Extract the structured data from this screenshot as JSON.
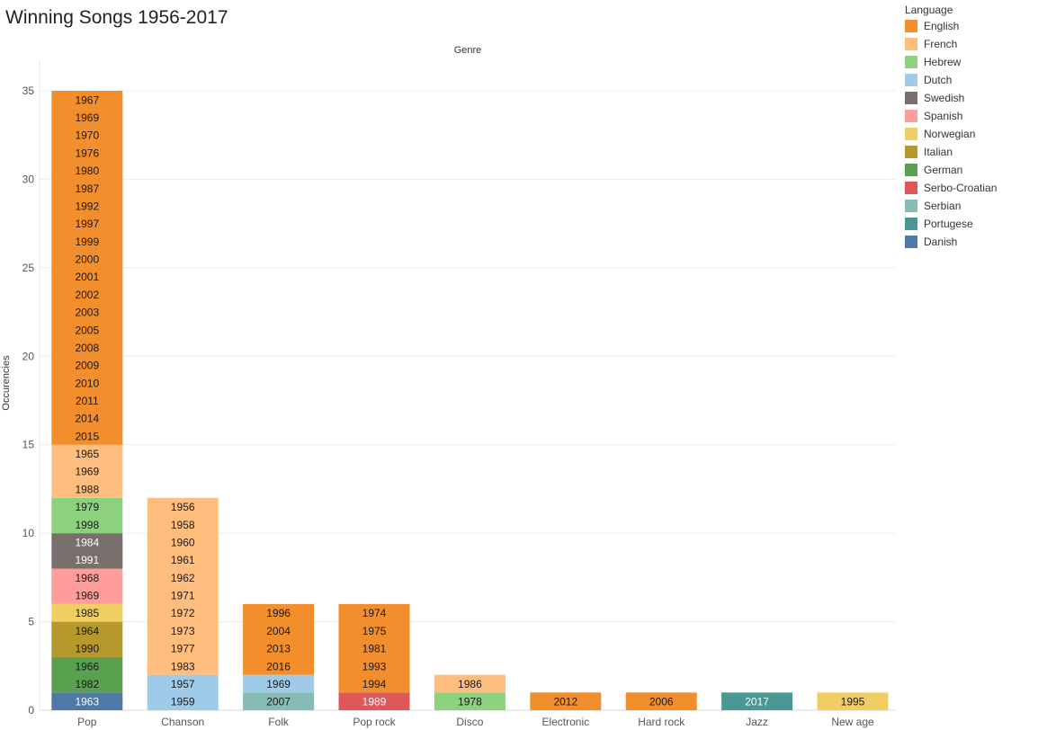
{
  "page": {
    "title": "Winning Songs 1956-2017"
  },
  "legend": {
    "title": "Language",
    "items": [
      {
        "label": "English",
        "color": "#F28E2B"
      },
      {
        "label": "French",
        "color": "#FFBE7D"
      },
      {
        "label": "Hebrew",
        "color": "#8CD17D"
      },
      {
        "label": "Dutch",
        "color": "#A0CBE8"
      },
      {
        "label": "Swedish",
        "color": "#79706E"
      },
      {
        "label": "Spanish",
        "color": "#FF9D9A"
      },
      {
        "label": "Norwegian",
        "color": "#F1CE63"
      },
      {
        "label": "Italian",
        "color": "#B6992D"
      },
      {
        "label": "German",
        "color": "#59A14F"
      },
      {
        "label": "Serbo-Croatian",
        "color": "#E15759"
      },
      {
        "label": "Serbian",
        "color": "#86BCB6"
      },
      {
        "label": "Portugese",
        "color": "#499894"
      },
      {
        "label": "Danish",
        "color": "#4E79A7"
      }
    ]
  },
  "chart_data": {
    "type": "bar",
    "stacked": true,
    "title": "Winning Songs 1956-2017",
    "column_header": "Genre",
    "xlabel": "",
    "ylabel": "Occurencies",
    "ylim": [
      0,
      36
    ],
    "yticks": [
      0,
      5,
      10,
      15,
      20,
      25,
      30,
      35
    ],
    "grid": true,
    "legend_position": "right",
    "categories": [
      "Pop",
      "Chanson",
      "Folk",
      "Pop rock",
      "Disco",
      "Electronic",
      "Hard rock",
      "Jazz",
      "New age"
    ],
    "stacks": [
      {
        "genre": "Pop",
        "segments": [
          {
            "language": "Danish",
            "years": [
              "1963"
            ]
          },
          {
            "language": "German",
            "years": [
              "1982",
              "1966"
            ]
          },
          {
            "language": "Italian",
            "years": [
              "1990",
              "1964"
            ]
          },
          {
            "language": "Norwegian",
            "years": [
              "1985"
            ]
          },
          {
            "language": "Spanish",
            "years": [
              "1969",
              "1968"
            ]
          },
          {
            "language": "Swedish",
            "years": [
              "1991",
              "1984"
            ]
          },
          {
            "language": "Hebrew",
            "years": [
              "1998",
              "1979"
            ]
          },
          {
            "language": "French",
            "years": [
              "1988",
              "1969",
              "1965"
            ]
          },
          {
            "language": "English",
            "years": [
              "2015",
              "2014",
              "2011",
              "2010",
              "2009",
              "2008",
              "2005",
              "2003",
              "2002",
              "2001",
              "2000",
              "1999",
              "1997",
              "1992",
              "1987",
              "1980",
              "1976",
              "1970",
              "1969",
              "1967"
            ]
          }
        ]
      },
      {
        "genre": "Chanson",
        "segments": [
          {
            "language": "Dutch",
            "years": [
              "1959",
              "1957"
            ]
          },
          {
            "language": "French",
            "years": [
              "1983",
              "1977",
              "1973",
              "1972",
              "1971",
              "1962",
              "1961",
              "1960",
              "1958",
              "1956"
            ]
          }
        ]
      },
      {
        "genre": "Folk",
        "segments": [
          {
            "language": "Serbian",
            "years": [
              "2007"
            ]
          },
          {
            "language": "Dutch",
            "years": [
              "1969"
            ]
          },
          {
            "language": "English",
            "years": [
              "2016",
              "2013",
              "2004",
              "1996"
            ]
          }
        ]
      },
      {
        "genre": "Pop rock",
        "segments": [
          {
            "language": "Serbo-Croatian",
            "years": [
              "1989"
            ]
          },
          {
            "language": "English",
            "years": [
              "1994",
              "1993",
              "1981",
              "1975",
              "1974"
            ]
          }
        ]
      },
      {
        "genre": "Disco",
        "segments": [
          {
            "language": "Hebrew",
            "years": [
              "1978"
            ]
          },
          {
            "language": "French",
            "years": [
              "1986"
            ]
          }
        ]
      },
      {
        "genre": "Electronic",
        "segments": [
          {
            "language": "English",
            "years": [
              "2012"
            ]
          }
        ]
      },
      {
        "genre": "Hard rock",
        "segments": [
          {
            "language": "English",
            "years": [
              "2006"
            ]
          }
        ]
      },
      {
        "genre": "Jazz",
        "segments": [
          {
            "language": "Portugese",
            "years": [
              "2017"
            ]
          }
        ]
      },
      {
        "genre": "New age",
        "segments": [
          {
            "language": "Norwegian",
            "years": [
              "1995"
            ]
          }
        ]
      }
    ]
  }
}
